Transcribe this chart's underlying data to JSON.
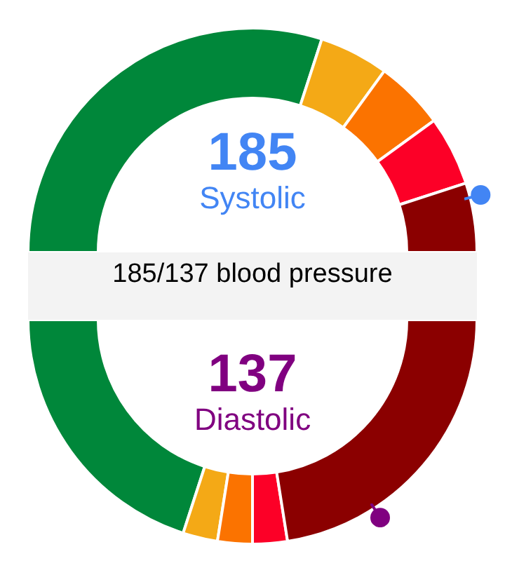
{
  "chart_data": [
    {
      "type": "donut",
      "title": "185",
      "subtitle": "Systolic",
      "annotations": [
        "185/137 blood pressure"
      ],
      "categories": [
        null,
        null,
        null,
        null,
        null
      ],
      "values": [
        60,
        10,
        10,
        10,
        10
      ],
      "colors": [
        "#00873a",
        "#f4a916",
        "#fb7300",
        "#fc0027",
        "#8b0000"
      ]
    },
    {
      "type": "donut",
      "title": "137",
      "subtitle": "Diastolic",
      "categories": [
        null,
        null,
        null,
        null,
        null
      ],
      "values": [
        40,
        5,
        5,
        5,
        45
      ],
      "colors": [
        "#00873a",
        "#f4a916",
        "#fb7300",
        "#fc0027",
        "#8b0000"
      ]
    }
  ]
}
